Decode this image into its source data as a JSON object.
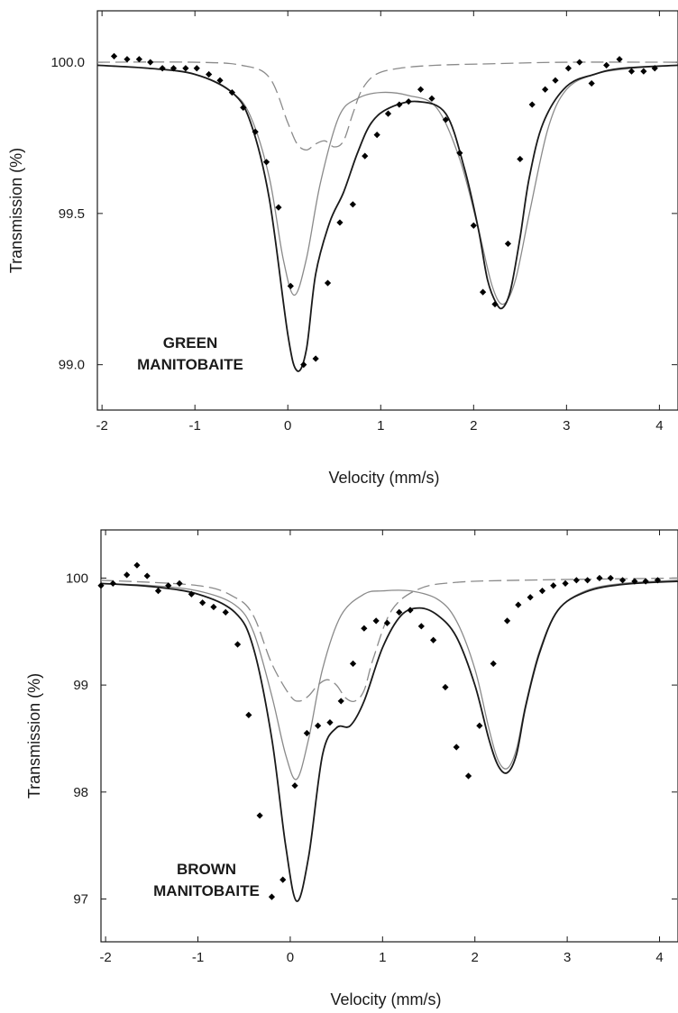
{
  "colors": {
    "data": "#000000",
    "total_fit": "#1a1a1a",
    "fe2_fit": "#8a8a8a",
    "fe3_fit": "#8a8a8a",
    "axis": "#1a1a1a"
  },
  "chart_data": [
    {
      "type": "scatter",
      "xlabel": "Velocity (mm/s)",
      "ylabel": "Transmission (%)",
      "xlim": [
        -2.05,
        4.2
      ],
      "ylim": [
        98.85,
        100.17
      ],
      "xticks": [
        -2,
        -1,
        0,
        1,
        2,
        3,
        4
      ],
      "xtick_labels": [
        "-2",
        "-1",
        "0",
        "1",
        "2",
        "3",
        "4"
      ],
      "yticks": [
        99.0,
        99.5,
        100.0
      ],
      "ytick_labels": [
        "99.0",
        "99.5",
        "100.0"
      ],
      "annotation": [
        "GREEN",
        "MANITOBAITE"
      ],
      "grid": false,
      "legend": "none",
      "series": [
        {
          "style": "markers",
          "x": [
            -2.07,
            -1.87,
            -1.73,
            -1.6,
            -1.48,
            -1.35,
            -1.23,
            -1.1,
            -0.98,
            -0.85,
            -0.73,
            -0.6,
            -0.48,
            -0.35,
            -0.23,
            -0.1,
            0.03,
            0.17,
            0.3,
            0.43,
            0.56,
            0.7,
            0.83,
            0.96,
            1.08,
            1.2,
            1.3,
            1.43,
            1.55,
            1.7,
            1.85,
            2.0,
            2.1,
            2.23,
            2.37,
            2.5,
            2.63,
            2.77,
            2.88,
            3.02,
            3.14,
            3.27,
            3.43,
            3.57,
            3.7,
            3.83,
            3.95
          ],
          "y": [
            100.0,
            100.02,
            100.01,
            100.01,
            100.0,
            99.98,
            99.98,
            99.98,
            99.98,
            99.96,
            99.94,
            99.9,
            99.85,
            99.77,
            99.67,
            99.52,
            99.26,
            99.0,
            99.02,
            99.27,
            99.47,
            99.53,
            99.69,
            99.76,
            99.83,
            99.86,
            99.87,
            99.91,
            99.88,
            99.81,
            99.7,
            99.46,
            99.24,
            99.2,
            99.4,
            99.68,
            99.86,
            99.91,
            99.94,
            99.98,
            100.0,
            99.93,
            99.99,
            100.01,
            99.97,
            99.97,
            99.98
          ]
        },
        {
          "style": "total-fit",
          "x": [
            -2.05,
            -1.5,
            -1.0,
            -0.6,
            -0.4,
            -0.2,
            0.0,
            0.1,
            0.2,
            0.3,
            0.45,
            0.6,
            0.75,
            0.9,
            1.1,
            1.4,
            1.7,
            1.9,
            2.05,
            2.15,
            2.25,
            2.32,
            2.4,
            2.5,
            2.6,
            2.75,
            3.0,
            3.3,
            3.6,
            4.2
          ],
          "y": [
            99.99,
            99.98,
            99.96,
            99.9,
            99.8,
            99.55,
            99.1,
            98.98,
            99.05,
            99.3,
            99.47,
            99.57,
            99.7,
            99.8,
            99.85,
            99.87,
            99.83,
            99.65,
            99.45,
            99.28,
            99.2,
            99.19,
            99.25,
            99.42,
            99.62,
            99.8,
            99.92,
            99.96,
            99.98,
            99.99
          ]
        },
        {
          "style": "fe2-fit",
          "x": [
            -2.05,
            -1.5,
            -1.0,
            -0.6,
            -0.4,
            -0.2,
            -0.05,
            0.07,
            0.2,
            0.35,
            0.55,
            0.75,
            1.0,
            1.3,
            1.6,
            1.85,
            2.05,
            2.2,
            2.32,
            2.45,
            2.6,
            2.8,
            3.0,
            3.3,
            3.7,
            4.2
          ],
          "y": [
            99.99,
            99.98,
            99.96,
            99.9,
            99.82,
            99.62,
            99.35,
            99.23,
            99.35,
            99.6,
            99.82,
            99.88,
            99.9,
            99.89,
            99.85,
            99.68,
            99.45,
            99.26,
            99.2,
            99.28,
            99.5,
            99.78,
            99.91,
            99.96,
            99.98,
            99.99
          ]
        },
        {
          "style": "fe3-fit",
          "x": [
            -2.05,
            -1.0,
            -0.5,
            -0.2,
            0.0,
            0.1,
            0.2,
            0.3,
            0.4,
            0.5,
            0.6,
            0.7,
            0.8,
            0.95,
            1.2,
            1.6,
            2.2,
            3.0,
            4.2
          ],
          "y": [
            100.0,
            100.0,
            99.99,
            99.95,
            99.8,
            99.73,
            99.71,
            99.73,
            99.74,
            99.72,
            99.74,
            99.83,
            99.91,
            99.96,
            99.98,
            99.99,
            99.995,
            100.0,
            100.0
          ]
        }
      ]
    },
    {
      "type": "scatter",
      "xlabel": "Velocity (mm/s)",
      "ylabel": "Transmission (%)",
      "xlim": [
        -2.05,
        4.2
      ],
      "ylim": [
        96.6,
        100.45
      ],
      "xticks": [
        -2,
        -1,
        0,
        1,
        2,
        3,
        4
      ],
      "xtick_labels": [
        "-2",
        "-1",
        "0",
        "1",
        "2",
        "3",
        "4"
      ],
      "yticks": [
        97,
        98,
        99,
        100
      ],
      "ytick_labels": [
        "97",
        "98",
        "99",
        "100"
      ],
      "annotation": [
        "BROWN",
        "MANITOBAITE"
      ],
      "grid": false,
      "legend": "none",
      "series": [
        {
          "style": "markers",
          "x": [
            -2.05,
            -1.92,
            -1.77,
            -1.66,
            -1.55,
            -1.43,
            -1.32,
            -1.2,
            -1.07,
            -0.95,
            -0.83,
            -0.7,
            -0.57,
            -0.45,
            -0.33,
            -0.2,
            -0.08,
            0.05,
            0.18,
            0.3,
            0.43,
            0.55,
            0.68,
            0.8,
            0.93,
            1.05,
            1.18,
            1.3,
            1.42,
            1.55,
            1.68,
            1.8,
            1.93,
            2.05,
            2.2,
            2.35,
            2.47,
            2.6,
            2.73,
            2.85,
            2.98,
            3.1,
            3.22,
            3.35,
            3.47,
            3.6,
            3.73,
            3.85,
            3.98
          ],
          "y": [
            99.93,
            99.95,
            100.03,
            100.12,
            100.02,
            99.88,
            99.93,
            99.95,
            99.85,
            99.77,
            99.73,
            99.68,
            99.38,
            98.72,
            97.78,
            97.02,
            97.18,
            98.06,
            98.55,
            98.62,
            98.65,
            98.85,
            99.2,
            99.53,
            99.6,
            99.58,
            99.68,
            99.7,
            99.55,
            99.42,
            98.98,
            98.42,
            98.15,
            98.62,
            99.2,
            99.6,
            99.75,
            99.82,
            99.88,
            99.93,
            99.95,
            99.98,
            99.98,
            100.0,
            100.0,
            99.98,
            99.97,
            99.97,
            99.98
          ]
        },
        {
          "style": "total-fit",
          "x": [
            -2.05,
            -1.5,
            -1.0,
            -0.6,
            -0.4,
            -0.2,
            -0.05,
            0.07,
            0.2,
            0.35,
            0.5,
            0.65,
            0.8,
            1.0,
            1.2,
            1.4,
            1.6,
            1.8,
            2.0,
            2.15,
            2.25,
            2.35,
            2.45,
            2.55,
            2.7,
            2.9,
            3.2,
            3.6,
            4.2
          ],
          "y": [
            99.95,
            99.92,
            99.85,
            99.68,
            99.35,
            98.5,
            97.5,
            96.98,
            97.4,
            98.35,
            98.6,
            98.62,
            98.85,
            99.35,
            99.65,
            99.72,
            99.65,
            99.45,
            99.0,
            98.5,
            98.25,
            98.18,
            98.35,
            98.8,
            99.3,
            99.7,
            99.87,
            99.94,
            99.97
          ]
        },
        {
          "style": "fe2-fit",
          "x": [
            -2.05,
            -1.5,
            -1.0,
            -0.6,
            -0.4,
            -0.2,
            -0.05,
            0.07,
            0.2,
            0.35,
            0.55,
            0.8,
            1.0,
            1.3,
            1.6,
            1.8,
            2.0,
            2.15,
            2.25,
            2.35,
            2.45,
            2.55,
            2.7,
            2.9,
            3.2,
            3.6,
            4.2
          ],
          "y": [
            99.95,
            99.93,
            99.88,
            99.75,
            99.5,
            98.9,
            98.35,
            98.12,
            98.5,
            99.15,
            99.65,
            99.85,
            99.88,
            99.88,
            99.8,
            99.6,
            99.15,
            98.6,
            98.3,
            98.22,
            98.4,
            98.82,
            99.32,
            99.7,
            99.88,
            99.95,
            99.98
          ]
        },
        {
          "style": "fe3-fit",
          "x": [
            -2.05,
            -1.0,
            -0.6,
            -0.4,
            -0.2,
            0.0,
            0.1,
            0.2,
            0.3,
            0.4,
            0.5,
            0.6,
            0.7,
            0.8,
            0.9,
            1.1,
            1.4,
            1.8,
            2.5,
            4.2
          ],
          "y": [
            99.98,
            99.93,
            99.82,
            99.65,
            99.2,
            98.9,
            98.85,
            98.9,
            99.0,
            99.05,
            99.0,
            98.88,
            98.85,
            98.95,
            99.25,
            99.7,
            99.9,
            99.96,
            99.98,
            100.0
          ]
        }
      ]
    }
  ]
}
